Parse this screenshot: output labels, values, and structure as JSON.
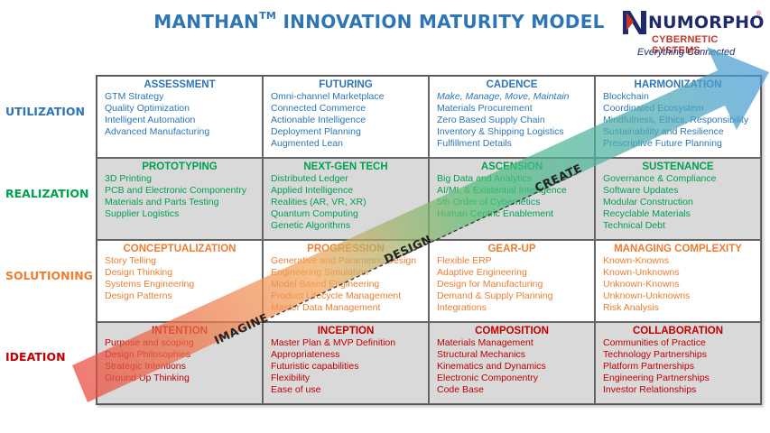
{
  "header": {
    "title_main": "MANTHAN",
    "title_sup": "TM",
    "title_rest": "INNOVATION MATURITY MODEL"
  },
  "logo": {
    "name": "NUMORPHO",
    "registered": "®",
    "subtitle": "CYBERNETIC SYSTEMS",
    "tagline": "Everything Connected"
  },
  "colors": {
    "utilization": "#2e75b6",
    "realization": "#00a050",
    "solutioning": "#ed7d31",
    "ideation": "#c00000"
  },
  "rows": [
    {
      "label": "UTILIZATION",
      "color_key": "utilization",
      "shaded": false,
      "cells": [
        {
          "title": "ASSESSMENT",
          "items": [
            "GTM Strategy",
            "Quality Optimization",
            "Intelligent Automation",
            "Advanced Manufacturing"
          ]
        },
        {
          "title": "FUTURING",
          "items": [
            "Omni-channel Marketplace",
            "Connected Commerce",
            "Actionable Intelligence",
            "Deployment Planning",
            "Augmented Lean"
          ]
        },
        {
          "title": "CADENCE",
          "italic_first": true,
          "items": [
            "Make, Manage, Move, Maintain",
            "Materials Procurement",
            "Zero Based Supply Chain",
            "Inventory & Shipping Logistics",
            "Fulfillment Details"
          ]
        },
        {
          "title": "HARMONIZATION",
          "items": [
            "Blockchain",
            "Coordinated Ecosystem",
            "Mindfulness, Ethics, Responsibility",
            "Sustainability and Resilience",
            "Prescriptive Future Planning"
          ]
        }
      ]
    },
    {
      "label": "REALIZATION",
      "color_key": "realization",
      "shaded": true,
      "cells": [
        {
          "title": "PROTOTYPING",
          "items": [
            "3D Printing",
            "PCB and Electronic Componentry",
            "Materials and Parts Testing",
            "Supplier Logistics"
          ]
        },
        {
          "title": "NEXT-GEN TECH",
          "items": [
            "Distributed Ledger",
            "Applied Intelligence",
            "Realities (AR, VR, XR)",
            "Quantum Computing",
            "Genetic Algorithms"
          ]
        },
        {
          "title": "ASCENSION",
          "items": [
            "Big Data and Analytics",
            "AI/ML & Existential Intelligence",
            "5th Order of Cybernetics",
            "Human Centric Enablement"
          ]
        },
        {
          "title": "SUSTENANCE",
          "items": [
            "Governance & Compliance",
            "Software Updates",
            "Modular Construction",
            "Recyclable Materials",
            "Technical Debt"
          ]
        }
      ]
    },
    {
      "label": "SOLUTIONING",
      "color_key": "solutioning",
      "shaded": false,
      "cells": [
        {
          "title": "CONCEPTUALIZATION",
          "items": [
            "Story Telling",
            "Design Thinking",
            "Systems Engineering",
            "Design Patterns"
          ]
        },
        {
          "title": "PROGRESSION",
          "items": [
            "Generative and Parametric Design",
            "Engineering Simulation",
            "Model Based Engineering",
            "Product Lifecycle Management",
            "Master Data Management"
          ]
        },
        {
          "title": "GEAR-UP",
          "items": [
            "Flexible ERP",
            "Adaptive Engineering",
            "Design for Manufacturing",
            "Demand & Supply Planning",
            "Integrations"
          ]
        },
        {
          "title": "MANAGING COMPLEXITY",
          "items": [
            "Known-Knowns",
            "Known-Unknowns",
            "Unknown-Knowns",
            "Unknown-Unknowns",
            "Risk Analysis"
          ]
        }
      ]
    },
    {
      "label": "IDEATION",
      "color_key": "ideation",
      "shaded": true,
      "cells": [
        {
          "title": "INTENTION",
          "items": [
            "Purpose and scoping",
            "Design Philosophies",
            "Strategic Intentions",
            "Ground Up Thinking"
          ]
        },
        {
          "title": "INCEPTION",
          "items": [
            "Master Plan & MVP Definition",
            "Appropriateness",
            "Futuristic capabilities",
            "Flexibility",
            "Ease of use"
          ]
        },
        {
          "title": "COMPOSITION",
          "items": [
            "Materials Management",
            "Structural Mechanics",
            "Kinematics and Dynamics",
            "Electronic Componentry",
            "Code Base"
          ]
        },
        {
          "title": "COLLABORATION",
          "items": [
            "Communities of Practice",
            "Technology Partnerships",
            "Platform Partnerships",
            "Engineering Partnerships",
            "Investor Relationships"
          ]
        }
      ]
    }
  ],
  "arrow": {
    "words": [
      "IMAGINE",
      "DESIGN",
      "CREATE"
    ],
    "colors": {
      "start": "#e8473c",
      "mid1": "#f2a65a",
      "mid2": "#4fc07a",
      "end": "#4a9bd6"
    }
  }
}
